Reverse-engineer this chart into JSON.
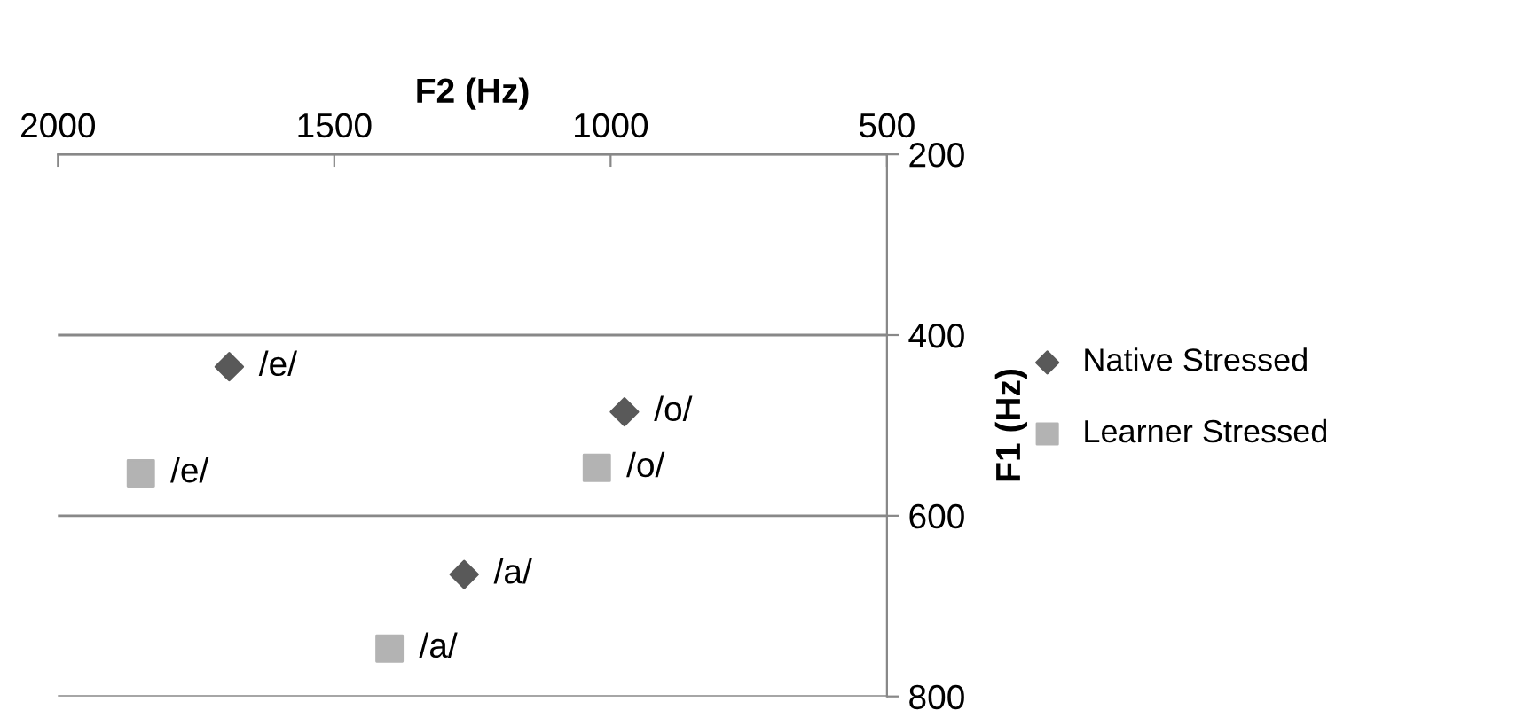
{
  "chart_data": {
    "type": "scatter",
    "xlabel": "F2 (Hz)",
    "ylabel": "F1 (Hz)",
    "xlim": [
      2000,
      500
    ],
    "xticks": [
      2000,
      1500,
      1000,
      500
    ],
    "ylim": [
      800,
      200
    ],
    "yticks": [
      200,
      400,
      600,
      800
    ],
    "grid": "y",
    "legend": "right",
    "series": [
      {
        "name": "Native Stressed",
        "color": "#595959",
        "marker": "diamond",
        "x": [
          1690,
          975,
          1265
        ],
        "values": [
          435,
          485,
          665
        ]
      },
      {
        "name": "Learner Stressed",
        "color": "#b3b3b3",
        "marker": "square",
        "x": [
          1850,
          1025,
          1400
        ],
        "values": [
          553,
          547,
          747
        ]
      }
    ],
    "annotations": [
      {
        "text": "/e/",
        "x": 1690,
        "y": 435
      },
      {
        "text": "/o/",
        "x": 975,
        "y": 485
      },
      {
        "text": "/a/",
        "x": 1265,
        "y": 665
      },
      {
        "text": "/e/",
        "x": 1850,
        "y": 553
      },
      {
        "text": "/o/",
        "x": 1025,
        "y": 547
      },
      {
        "text": "/a/",
        "x": 1400,
        "y": 747
      }
    ]
  }
}
